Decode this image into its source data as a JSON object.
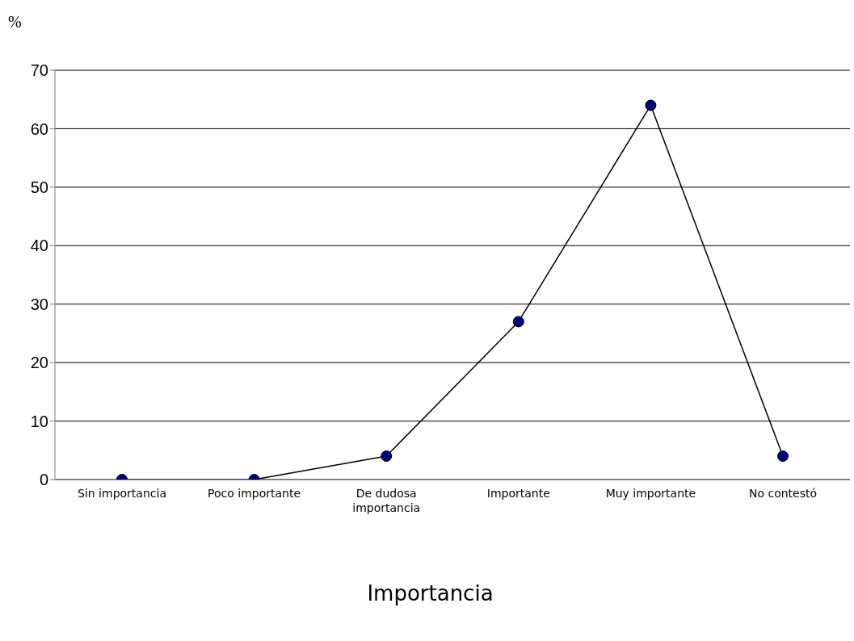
{
  "chart_data": {
    "type": "line",
    "xlabel": "Importancia",
    "ylabel": "%",
    "categories": [
      "Sin importancia",
      "Poco importante",
      "De dudosa importancia",
      "Importante",
      "Muy importante",
      "No contestó"
    ],
    "series": [
      {
        "color": "#000000",
        "values": [
          0,
          0,
          4,
          27,
          64,
          4
        ]
      }
    ],
    "ylim": [
      0,
      70
    ],
    "yticks": [
      0,
      10,
      20,
      30,
      40,
      50,
      60,
      70
    ],
    "grid": "y",
    "marker": "circle",
    "line_style": "solid",
    "legend": false
  }
}
